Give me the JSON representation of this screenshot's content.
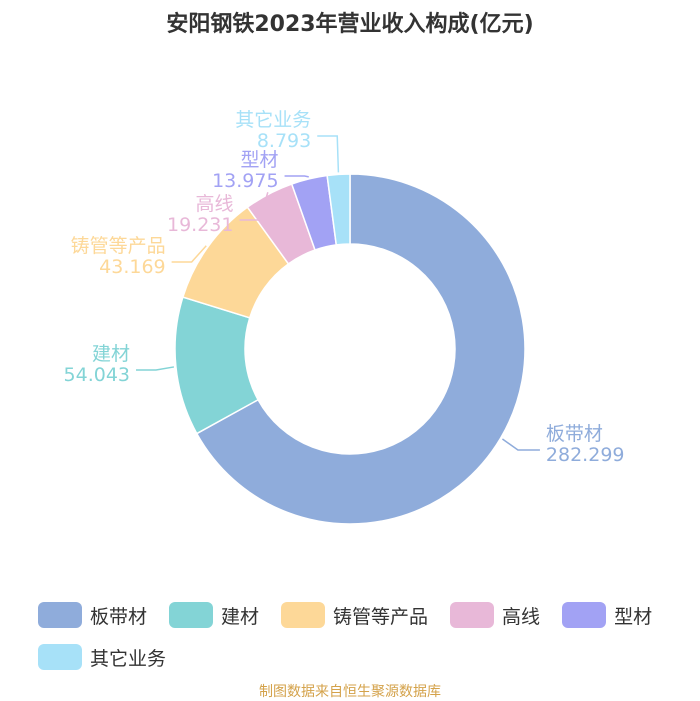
{
  "chart_data": {
    "type": "pie",
    "title": "安阳钢铁2023年营业收入构成(亿元)",
    "categories": [
      "板带材",
      "建材",
      "铸管等产品",
      "高线",
      "型材",
      "其它业务"
    ],
    "values": [
      282.299,
      54.043,
      43.169,
      19.231,
      13.975,
      8.793
    ],
    "value_labels": [
      "282.299",
      "54.043",
      "43.169",
      "19.231",
      "13.975",
      "8.793"
    ],
    "colors": [
      "#8facdb",
      "#83d4d6",
      "#fdd898",
      "#e8b8d8",
      "#a2a2f4",
      "#a7e1f8"
    ],
    "donut": true,
    "legend_position": "bottom"
  },
  "source_note": "制图数据来自恒生聚源数据库"
}
